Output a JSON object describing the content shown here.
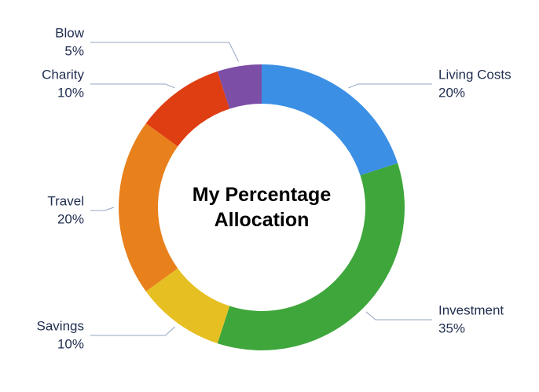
{
  "chart_data": {
    "type": "donut",
    "title": "My Percentage Allocation",
    "categories": [
      "Living Costs",
      "Investment",
      "Savings",
      "Travel",
      "Charity",
      "Blow"
    ],
    "values": [
      20,
      35,
      10,
      20,
      10,
      5
    ],
    "value_labels": [
      "20%",
      "35%",
      "10%",
      "20%",
      "10%",
      "5%"
    ],
    "colors": [
      "#3b8fe4",
      "#3ea63b",
      "#e6c022",
      "#e8801c",
      "#df3d12",
      "#7c4ea6"
    ]
  }
}
